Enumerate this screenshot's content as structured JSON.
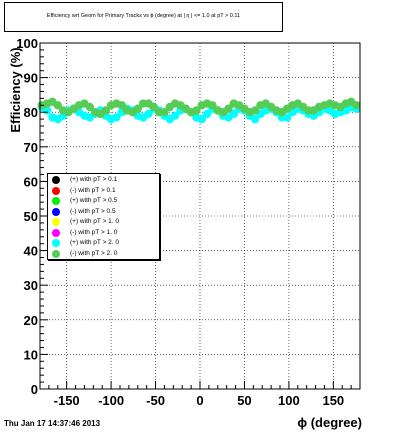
{
  "title": "Efficiency wrt Geom for Primary Tracks vs ϕ (degree) at | η | <= 1.0 at pT > 0.11",
  "footer": "Thu Jan 17 14:37:46 2013",
  "colors": {
    "black": "#000000",
    "red": "#ff0000",
    "green": "#00ee00",
    "blue": "#0000ff",
    "yellow": "#ffff00",
    "magenta": "#ff00ff",
    "cyan": "#00ffff",
    "lightgreen": "#55cc55"
  },
  "chart_data": {
    "type": "scatter",
    "xlabel": "ϕ (degree)",
    "ylabel": "Efficiency (%)",
    "xlim": [
      -180,
      180
    ],
    "ylim": [
      0,
      100
    ],
    "xticks": [
      -150,
      -100,
      -50,
      0,
      50,
      100,
      150
    ],
    "yticks": [
      0,
      10,
      20,
      30,
      40,
      50,
      60,
      70,
      80,
      90,
      100
    ],
    "grid": true,
    "legend_position": "left-middle",
    "series": [
      {
        "name": "(+) with pT > 0.1",
        "color": "#000000",
        "x": [],
        "y": []
      },
      {
        "name": "(-) with pT > 0.1",
        "color": "#ff0000",
        "x": [],
        "y": []
      },
      {
        "name": "(+) with pT > 0.5",
        "color": "#00ee00",
        "x": [],
        "y": []
      },
      {
        "name": "(-) with pT > 0.5",
        "color": "#0000ff",
        "x": [],
        "y": []
      },
      {
        "name": "(+) with pT > 1. 0",
        "color": "#ffff00",
        "x": [],
        "y": []
      },
      {
        "name": "(-) with pT > 1. 0",
        "color": "#ff00ff",
        "x": [],
        "y": []
      },
      {
        "name": "(+) with pT > 2. 0",
        "color": "#00ffff",
        "x": [
          -178,
          -172,
          -166,
          -160,
          -154,
          -148,
          -142,
          -136,
          -130,
          -124,
          -118,
          -112,
          -106,
          -100,
          -94,
          -88,
          -82,
          -76,
          -70,
          -64,
          -58,
          -52,
          -46,
          -40,
          -34,
          -28,
          -22,
          -16,
          -10,
          -4,
          2,
          8,
          14,
          20,
          26,
          32,
          38,
          44,
          50,
          56,
          62,
          68,
          74,
          80,
          86,
          92,
          98,
          104,
          110,
          116,
          122,
          128,
          134,
          140,
          146,
          152,
          158,
          164,
          170,
          176
        ],
        "y": [
          81.5,
          80.5,
          78.5,
          78.0,
          79.0,
          80.5,
          81.0,
          80.0,
          79.0,
          78.5,
          79.5,
          80.5,
          79.0,
          78.0,
          78.5,
          80.0,
          81.0,
          80.5,
          79.0,
          78.5,
          79.5,
          81.0,
          80.5,
          79.0,
          78.0,
          79.0,
          80.5,
          81.0,
          80.0,
          78.5,
          78.0,
          79.5,
          81.0,
          80.5,
          79.0,
          78.5,
          79.5,
          81.0,
          80.5,
          79.0,
          78.0,
          79.5,
          80.5,
          81.0,
          80.0,
          78.5,
          78.5,
          80.0,
          81.0,
          80.5,
          79.5,
          79.0,
          80.0,
          81.0,
          80.5,
          79.5,
          80.0,
          80.5,
          81.5,
          81.0
        ]
      },
      {
        "name": "(-) with pT > 2. 0",
        "color": "#55cc55",
        "x": [
          -178,
          -172,
          -166,
          -160,
          -154,
          -148,
          -142,
          -136,
          -130,
          -124,
          -118,
          -112,
          -106,
          -100,
          -94,
          -88,
          -82,
          -76,
          -70,
          -64,
          -58,
          -52,
          -46,
          -40,
          -34,
          -28,
          -22,
          -16,
          -10,
          -4,
          2,
          8,
          14,
          20,
          26,
          32,
          38,
          44,
          50,
          56,
          62,
          68,
          74,
          80,
          86,
          92,
          98,
          104,
          110,
          116,
          122,
          128,
          134,
          140,
          146,
          152,
          158,
          164,
          170,
          176
        ],
        "y": [
          82.0,
          82.5,
          83.0,
          82.0,
          80.5,
          80.0,
          81.0,
          82.0,
          82.5,
          81.5,
          80.0,
          79.5,
          80.5,
          82.0,
          82.5,
          82.0,
          80.5,
          80.0,
          81.0,
          82.5,
          82.5,
          81.5,
          80.0,
          80.0,
          81.5,
          82.5,
          82.0,
          81.0,
          80.0,
          80.5,
          82.0,
          82.5,
          82.0,
          80.5,
          80.0,
          81.0,
          82.5,
          82.0,
          81.0,
          80.0,
          80.5,
          82.0,
          82.5,
          81.5,
          80.5,
          80.0,
          81.0,
          82.0,
          82.5,
          81.5,
          80.5,
          80.5,
          81.5,
          82.0,
          82.5,
          82.0,
          81.5,
          82.5,
          83.0,
          82.0
        ]
      }
    ]
  }
}
